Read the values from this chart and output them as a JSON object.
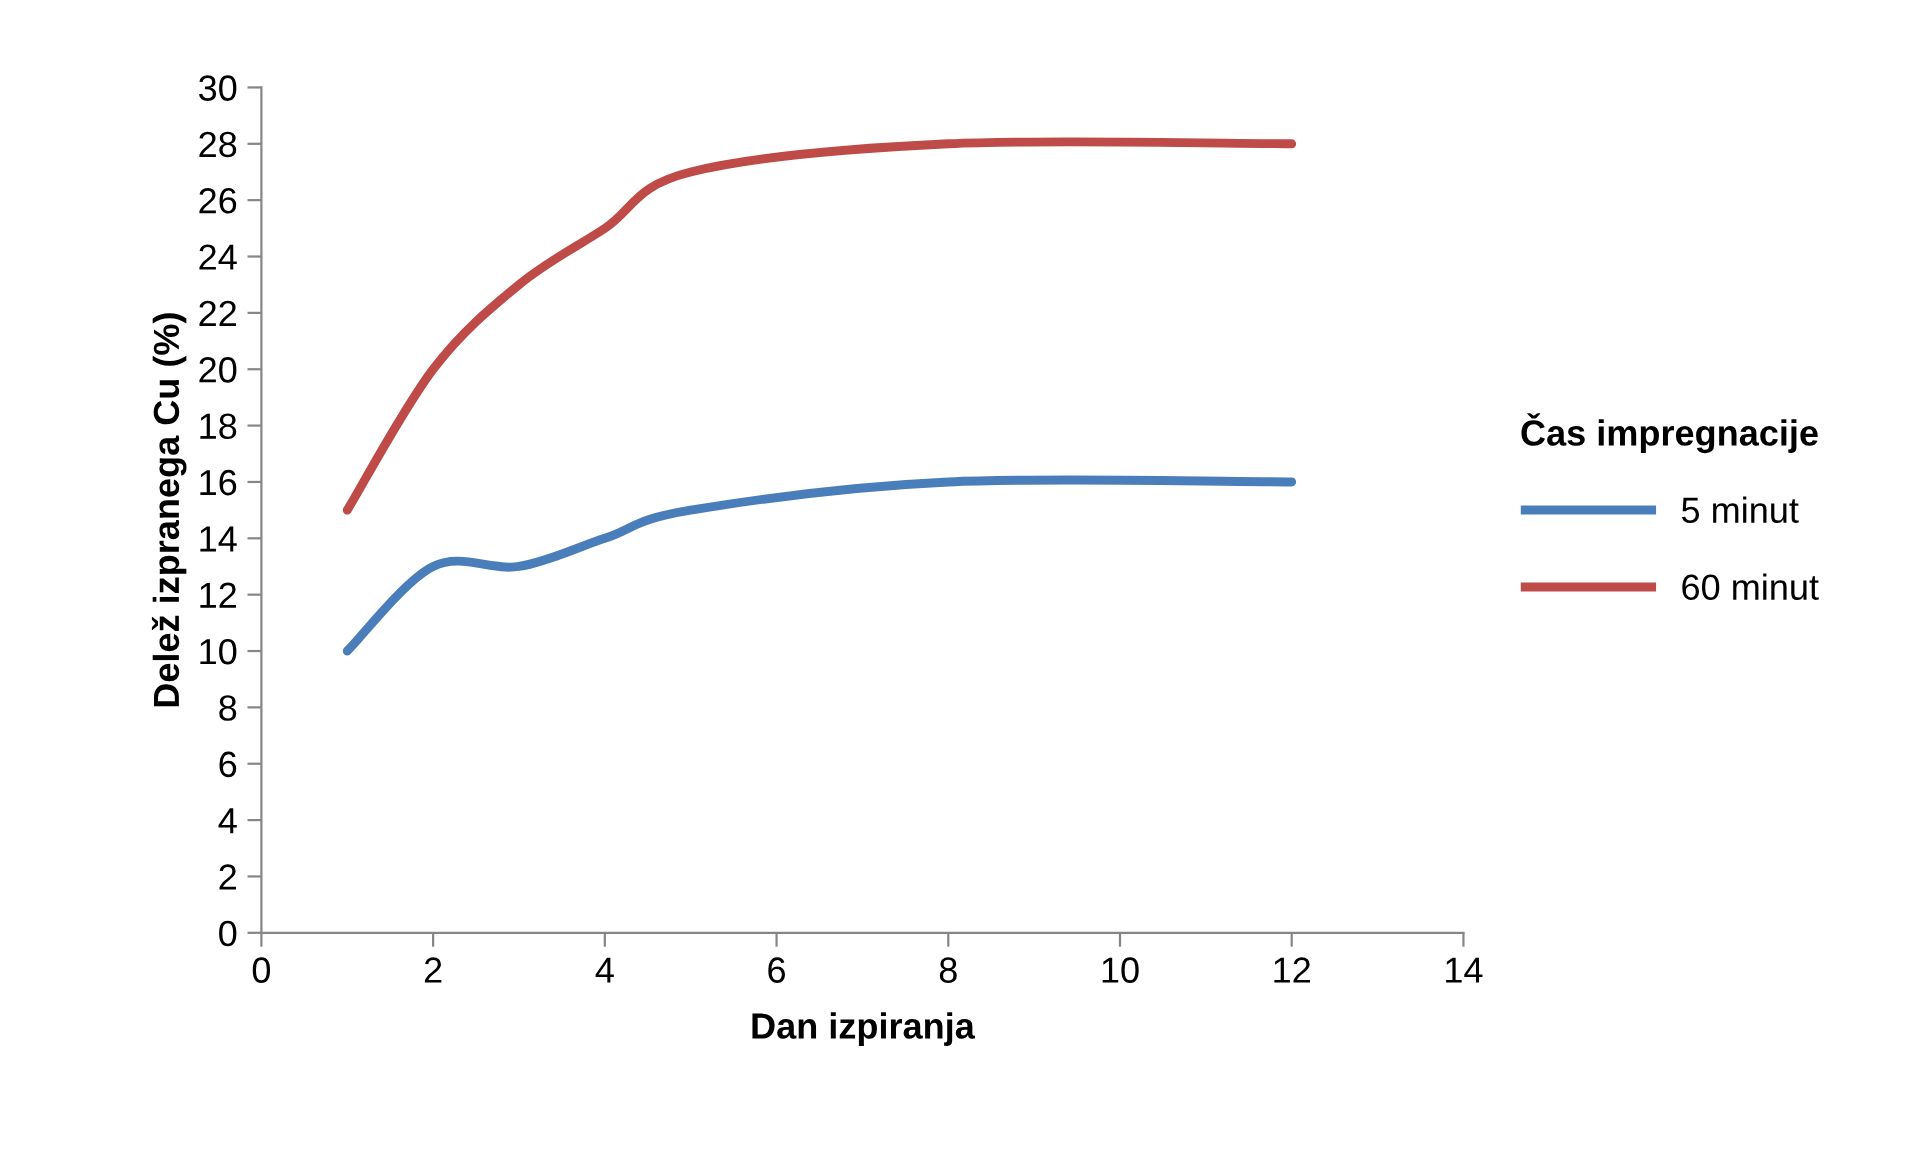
{
  "chart_data": {
    "type": "line",
    "xlabel": "Dan izpiranja",
    "ylabel": "Delež izpranega Cu (%)",
    "legend_title": "Čas impregnacije",
    "legend": "right",
    "x": [
      1,
      2,
      3,
      4,
      5,
      8,
      12
    ],
    "series": [
      {
        "name": "5 minut",
        "color": "#4a7ebb",
        "values": [
          10,
          13,
          13,
          14,
          15,
          16,
          16
        ]
      },
      {
        "name": "60 minut",
        "color": "#be4b48",
        "values": [
          15,
          20,
          23,
          25,
          27,
          28,
          28
        ]
      }
    ],
    "xlim": [
      0,
      14
    ],
    "xticks": [
      0,
      2,
      4,
      6,
      8,
      10,
      12,
      14
    ],
    "ylim": [
      0,
      30
    ],
    "yticks": [
      0,
      2,
      4,
      6,
      8,
      10,
      12,
      14,
      16,
      18,
      20,
      22,
      24,
      26,
      28,
      30
    ],
    "grid": false,
    "marker": "none",
    "line_style": "solid"
  }
}
